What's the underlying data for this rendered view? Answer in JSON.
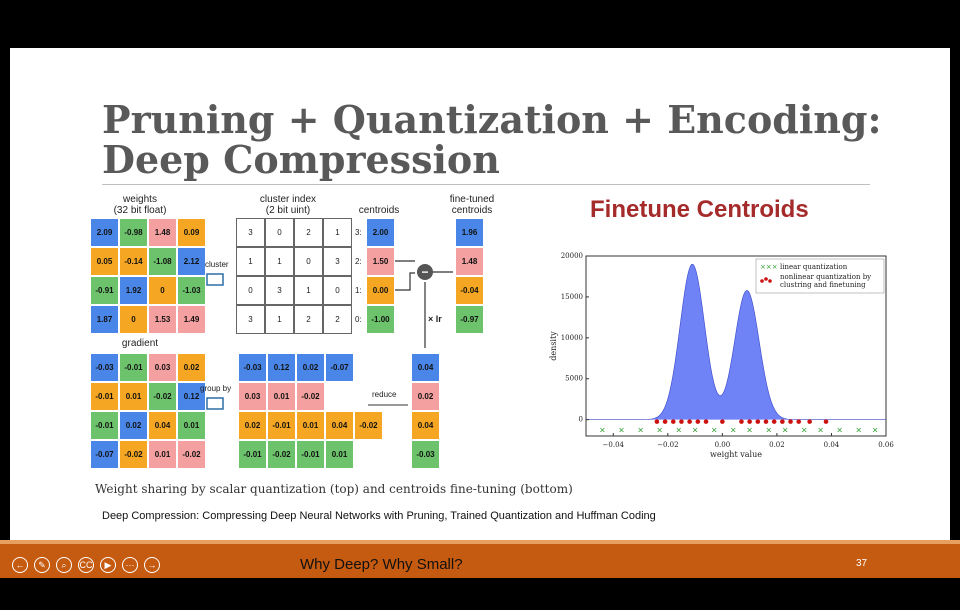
{
  "slide": {
    "title": "Pruning + Quantization + Encoding:\nDeep Compression",
    "caption": "Weight sharing by scalar quantization (top) and centroids fine-tuning (bottom)",
    "reference": "Deep Compression: Compressing Deep Neural Networks with Pruning, Trained Quantization and Huffman Coding"
  },
  "figure": {
    "weights_header": "weights\n(32 bit float)",
    "cluster_header": "cluster index\n(2 bit uint)",
    "centroids_header": "centroids",
    "finetuned_header": "fine-tuned\ncentroids",
    "gradient_header": "gradient",
    "cluster_label": "cluster",
    "groupby_label": "group by",
    "reduce_label": "reduce",
    "lr_label": "× lr",
    "minus_label": "−",
    "weights": [
      [
        "2.09",
        "-0.98",
        "1.48",
        "0.09"
      ],
      [
        "0.05",
        "-0.14",
        "-1.08",
        "2.12"
      ],
      [
        "-0.91",
        "1.92",
        "0",
        "-1.03"
      ],
      [
        "1.87",
        "0",
        "1.53",
        "1.49"
      ]
    ],
    "weights_colors": [
      [
        "b",
        "g",
        "p",
        "o"
      ],
      [
        "o",
        "o",
        "g",
        "b"
      ],
      [
        "g",
        "b",
        "o",
        "g"
      ],
      [
        "b",
        "o",
        "p",
        "p"
      ]
    ],
    "cluster_index": [
      [
        "3",
        "0",
        "2",
        "1"
      ],
      [
        "1",
        "1",
        "0",
        "3"
      ],
      [
        "0",
        "3",
        "1",
        "0"
      ],
      [
        "3",
        "1",
        "2",
        "2"
      ]
    ],
    "centroid_index_labels": [
      "3:",
      "2:",
      "1:",
      "0:"
    ],
    "centroids": [
      "2.00",
      "1.50",
      "0.00",
      "-1.00"
    ],
    "finetuned": [
      "1.96",
      "1.48",
      "-0.04",
      "-0.97"
    ],
    "gradient": [
      [
        "-0.03",
        "-0.01",
        "0.03",
        "0.02"
      ],
      [
        "-0.01",
        "0.01",
        "-0.02",
        "0.12"
      ],
      [
        "-0.01",
        "0.02",
        "0.04",
        "0.01"
      ],
      [
        "-0.07",
        "-0.02",
        "0.01",
        "-0.02"
      ]
    ],
    "gradient_colors": [
      [
        "b",
        "g",
        "p",
        "o"
      ],
      [
        "o",
        "o",
        "g",
        "b"
      ],
      [
        "g",
        "b",
        "o",
        "g"
      ],
      [
        "b",
        "o",
        "p",
        "p"
      ]
    ],
    "grouped": [
      {
        "color": "b",
        "values": [
          "-0.03",
          "0.12",
          "0.02",
          "-0.07"
        ]
      },
      {
        "color": "p",
        "values": [
          "0.03",
          "0.01",
          "-0.02"
        ]
      },
      {
        "color": "o",
        "values": [
          "0.02",
          "-0.01",
          "0.01",
          "0.04",
          "-0.02"
        ]
      },
      {
        "color": "g",
        "values": [
          "-0.01",
          "-0.02",
          "-0.01",
          "0.01"
        ]
      }
    ],
    "reduced": [
      "0.04",
      "0.02",
      "0.04",
      "-0.03"
    ]
  },
  "finetune_title": "Finetune Centroids",
  "colors": {
    "b": "#4a86e8",
    "g": "#6cc36c",
    "o": "#f5a623",
    "p": "#f4a0a0",
    "accent": "#c55a11",
    "title": "#a52a2a"
  },
  "chart_data": {
    "type": "area",
    "xlabel": "weight value",
    "ylabel": "density",
    "xlim": [
      -0.05,
      0.06
    ],
    "ylim": [
      -2000,
      20000
    ],
    "xticks": [
      "−0.04",
      "−0.02",
      "0.00",
      "0.02",
      "0.04",
      "0.06"
    ],
    "xtick_values": [
      -0.04,
      -0.02,
      0.0,
      0.02,
      0.04,
      0.06
    ],
    "yticks": [
      "0",
      "5000",
      "10000",
      "15000",
      "20000"
    ],
    "ytick_values": [
      0,
      5000,
      10000,
      15000,
      20000
    ],
    "legend": [
      "linear quantization",
      "nonlinear quantization by\nclustring and finetuning"
    ],
    "legend_position": "top-right",
    "density_peaks": [
      {
        "center": -0.011,
        "height": 19000,
        "width": 0.0045
      },
      {
        "center": 0.009,
        "height": 15800,
        "width": 0.0045
      }
    ],
    "linear_quantization_x": [
      -0.044,
      -0.037,
      -0.03,
      -0.023,
      -0.016,
      -0.01,
      -0.003,
      0.004,
      0.01,
      0.017,
      0.023,
      0.03,
      0.036,
      0.043,
      0.05,
      0.056
    ],
    "nonlinear_quantization_x": [
      -0.024,
      -0.021,
      -0.018,
      -0.015,
      -0.012,
      -0.009,
      -0.006,
      0.0,
      0.007,
      0.01,
      0.013,
      0.016,
      0.019,
      0.022,
      0.025,
      0.028,
      0.032,
      0.038
    ]
  },
  "bottom_bar": {
    "title": "Why Deep? Why Small?",
    "page_number": "37",
    "controls": [
      "back-icon",
      "pen-icon",
      "zoom-icon",
      "cc-icon",
      "video-icon",
      "more-icon",
      "forward-icon"
    ]
  }
}
